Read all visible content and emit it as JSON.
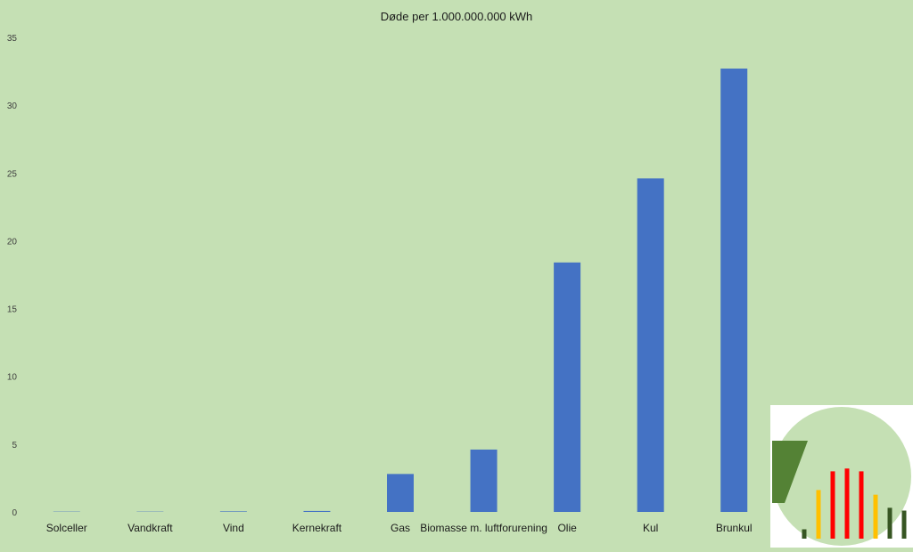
{
  "chart_data": {
    "type": "bar",
    "title": "Døde per 1.000.000.000 kWh",
    "xlabel": "",
    "ylabel": "",
    "categories": [
      "Solceller",
      "Vandkraft",
      "Vind",
      "Kernekraft",
      "Gas",
      "Biomasse m. luftforurening",
      "Olie",
      "Kul",
      "Brunkul"
    ],
    "values": [
      0.02,
      0.02,
      0.04,
      0.07,
      2.8,
      4.6,
      18.4,
      24.6,
      32.7
    ],
    "yticks": [
      "0",
      "5",
      "10",
      "15",
      "20",
      "25",
      "30",
      "35"
    ],
    "ylim": [
      0,
      35
    ],
    "grid": false,
    "legend": "none",
    "bar_color": "#4472c4",
    "background_color": "#c5e0b4"
  },
  "logo": {
    "circle_color": "#c5e0b4",
    "arrow_color": "#548235",
    "bar_colors": [
      "#375623",
      "#ffc000",
      "#ff0000",
      "#ff0000",
      "#ff0000",
      "#ffc000",
      "#375623",
      "#375623"
    ]
  }
}
